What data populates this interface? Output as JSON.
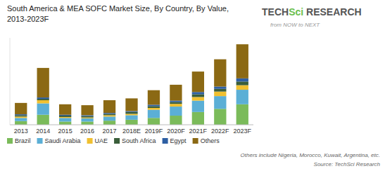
{
  "chart_data": {
    "type": "bar",
    "stacked": true,
    "title": "South America & MEA SOFC Market Size, By Country, By Value,",
    "subtitle": "2013-2023F",
    "categories": [
      "2013",
      "2014",
      "2015",
      "2016",
      "2017",
      "2018E",
      "2019F",
      "2020F",
      "2021F",
      "2022F",
      "2023F"
    ],
    "series": [
      {
        "name": "Brazil",
        "color": "#7BBB5A",
        "values": [
          0.8,
          2.2,
          0.7,
          0.7,
          0.9,
          1.1,
          1.5,
          2.0,
          2.8,
          3.5,
          4.5
        ]
      },
      {
        "name": "Saudi Arabia",
        "color": "#5BAFD6",
        "values": [
          0.7,
          2.5,
          0.8,
          0.7,
          0.9,
          1.0,
          1.8,
          2.0,
          2.5,
          2.8,
          3.2
        ]
      },
      {
        "name": "UAE",
        "color": "#F0C030",
        "values": [
          0.3,
          0.7,
          0.2,
          0.2,
          0.3,
          0.3,
          0.4,
          0.6,
          0.8,
          1.0,
          1.0
        ]
      },
      {
        "name": "South Africa",
        "color": "#3A5E3A",
        "values": [
          0.3,
          0.3,
          0.3,
          0.3,
          0.3,
          0.4,
          0.4,
          0.4,
          0.6,
          0.6,
          0.8
        ]
      },
      {
        "name": "Egypt",
        "color": "#2E5FA3",
        "values": [
          0.2,
          0.3,
          0.2,
          0.2,
          0.2,
          0.2,
          0.3,
          0.3,
          0.5,
          0.5,
          0.7
        ]
      },
      {
        "name": "Others",
        "color": "#8B6914",
        "values": [
          2.5,
          6.5,
          2.3,
          2.2,
          2.8,
          2.8,
          3.2,
          3.5,
          4.5,
          6.0,
          7.5
        ]
      }
    ],
    "ylim": [
      0,
      19.116
    ],
    "tick_labels": "x",
    "grid": false,
    "legend": "bottom",
    "annotations": [
      {
        "text": "Others include Nigeria, Morocco, Kuwait, Argentina, etc.",
        "color": "#666666"
      },
      {
        "text": "Source: TechSci Research",
        "color": "#666666"
      },
      {
        "text": "TECH",
        "color": "#555555"
      },
      {
        "text": "Sci",
        "color": "#6BBF4E"
      },
      {
        "text": " RESEARCH",
        "color": "#555555"
      },
      {
        "text": "from NOW to NEXT",
        "color": "#999999"
      }
    ]
  }
}
